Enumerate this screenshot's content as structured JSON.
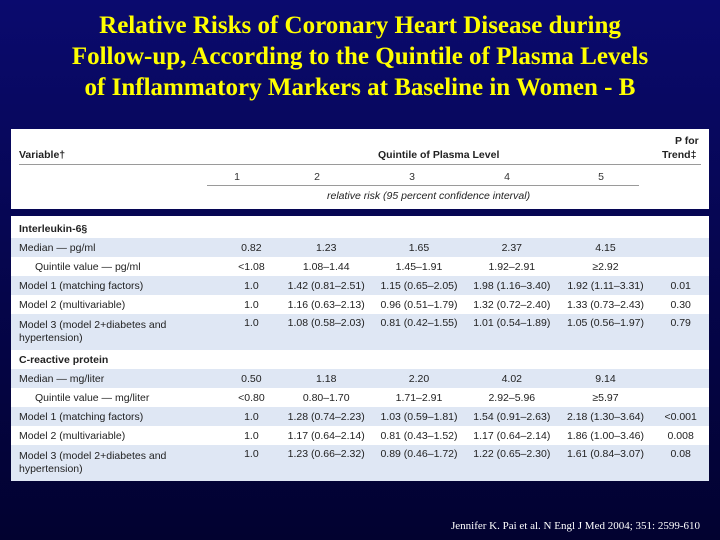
{
  "title": {
    "line1": "Relative Risks of Coronary Heart Disease during",
    "line2": "Follow-up, According to the Quintile of Plasma Levels",
    "line3": "of Inflammatory Markers at Baseline in Women - B"
  },
  "header": {
    "variable": "Variable†",
    "quintile": "Quintile of Plasma Level",
    "p_line1": "P for",
    "p_line2": "Trend‡",
    "cols": [
      "1",
      "2",
      "3",
      "4",
      "5"
    ],
    "subtitle": "relative risk (95 percent confidence interval)"
  },
  "rows": [
    {
      "label": "Interleukin-6§",
      "type": "group",
      "cells": [
        "",
        "",
        "",
        "",
        "",
        ""
      ]
    },
    {
      "label": "Median — pg/ml",
      "type": "normal",
      "cells": [
        "0.82",
        "1.23",
        "1.65",
        "2.37",
        "4.15",
        ""
      ]
    },
    {
      "label": "Quintile value — pg/ml",
      "type": "indent",
      "cells": [
        "<1.08",
        "1.08–1.44",
        "1.45–1.91",
        "1.92–2.91",
        "≥2.92",
        ""
      ]
    },
    {
      "label": "Model 1 (matching factors)",
      "type": "normal",
      "cells": [
        "1.0",
        "1.42 (0.81–2.51)",
        "1.15 (0.65–2.05)",
        "1.98 (1.16–3.40)",
        "1.92 (1.11–3.31)",
        "0.01"
      ]
    },
    {
      "label": "Model 2 (multivariable)",
      "type": "normal",
      "cells": [
        "1.0",
        "1.16 (0.63–2.13)",
        "0.96 (0.51–1.79)",
        "1.32 (0.72–2.40)",
        "1.33 (0.73–2.43)",
        "0.30"
      ]
    },
    {
      "label": "Model 3 (model 2+diabetes and hypertension)",
      "type": "tall",
      "cells": [
        "1.0",
        "1.08 (0.58–2.03)",
        "0.81 (0.42–1.55)",
        "1.01 (0.54–1.89)",
        "1.05 (0.56–1.97)",
        "0.79"
      ]
    },
    {
      "label": "C-reactive protein",
      "type": "group",
      "cells": [
        "",
        "",
        "",
        "",
        "",
        ""
      ]
    },
    {
      "label": "Median — mg/liter",
      "type": "normal",
      "cells": [
        "0.50",
        "1.18",
        "2.20",
        "4.02",
        "9.14",
        ""
      ]
    },
    {
      "label": "Quintile value — mg/liter",
      "type": "indent",
      "cells": [
        "<0.80",
        "0.80–1.70",
        "1.71–2.91",
        "2.92–5.96",
        "≥5.97",
        ""
      ]
    },
    {
      "label": "Model 1 (matching factors)",
      "type": "normal",
      "cells": [
        "1.0",
        "1.28 (0.74–2.23)",
        "1.03 (0.59–1.81)",
        "1.54 (0.91–2.63)",
        "2.18 (1.30–3.64)",
        "<0.001"
      ]
    },
    {
      "label": "Model 2 (multivariable)",
      "type": "normal",
      "cells": [
        "1.0",
        "1.17 (0.64–2.14)",
        "0.81 (0.43–1.52)",
        "1.17 (0.64–2.14)",
        "1.86 (1.00–3.46)",
        "0.008"
      ]
    },
    {
      "label": "Model 3 (model 2+diabetes and hypertension)",
      "type": "tall",
      "cells": [
        "1.0",
        "1.23 (0.66–2.32)",
        "0.89 (0.46–1.72)",
        "1.22 (0.65–2.30)",
        "1.61 (0.84–3.07)",
        "0.08"
      ]
    }
  ],
  "footer": "Jennifer K. Pai et al. N Engl J Med 2004; 351: 2599-610"
}
